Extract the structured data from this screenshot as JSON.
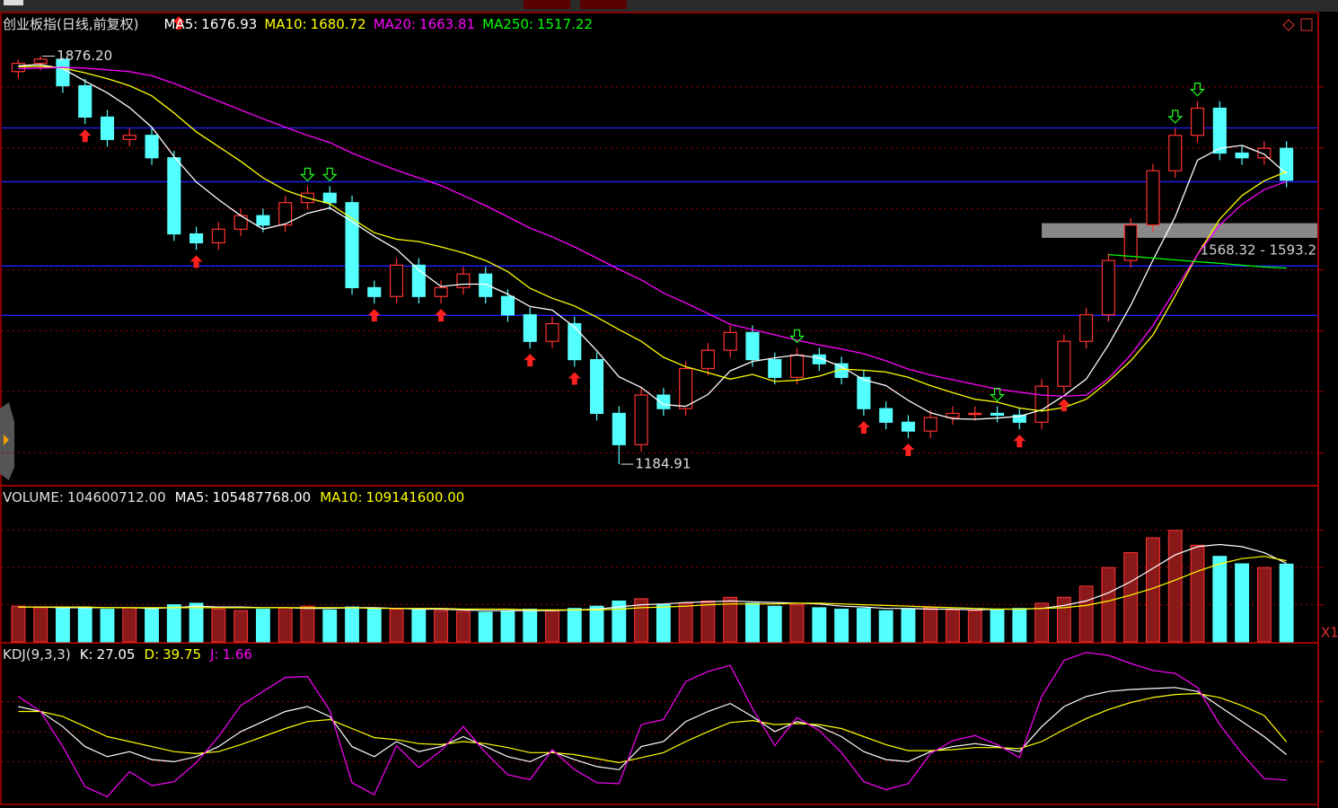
{
  "chart_data": [
    {
      "type": "candlestick",
      "title": "创业板指(日线,前复权)",
      "open": [
        1850,
        1864,
        1871,
        1826,
        1773,
        1735,
        1742,
        1704,
        1575,
        1560,
        1583,
        1606,
        1590,
        1628,
        1644,
        1628,
        1484,
        1469,
        1522,
        1469,
        1484,
        1507,
        1469,
        1438,
        1393,
        1423,
        1362,
        1271,
        1218,
        1302,
        1279,
        1347,
        1378,
        1408,
        1362,
        1332,
        1370,
        1355,
        1332,
        1279,
        1256,
        1241,
        1264,
        1271,
        1271,
        1268,
        1256,
        1317,
        1393,
        1438,
        1530,
        1590,
        1682,
        1742,
        1788,
        1712,
        1704,
        1720
      ],
      "high": [
        1870,
        1876.2,
        1874,
        1838,
        1785,
        1754,
        1754,
        1716,
        1587,
        1595,
        1618,
        1618,
        1640,
        1656,
        1656,
        1640,
        1496,
        1534,
        1534,
        1496,
        1519,
        1519,
        1481,
        1450,
        1435,
        1435,
        1374,
        1283,
        1314,
        1314,
        1359,
        1390,
        1420,
        1420,
        1374,
        1382,
        1382,
        1367,
        1344,
        1291,
        1268,
        1276,
        1283,
        1283,
        1283,
        1280,
        1329,
        1405,
        1450,
        1542,
        1602,
        1694,
        1754,
        1800,
        1800,
        1724,
        1732,
        1732
      ],
      "low": [
        1838,
        1852,
        1814,
        1761,
        1723,
        1723,
        1692,
        1563,
        1548,
        1548,
        1571,
        1578,
        1578,
        1616,
        1616,
        1472,
        1457,
        1457,
        1457,
        1457,
        1472,
        1457,
        1426,
        1381,
        1381,
        1350,
        1259,
        1184.91,
        1206,
        1267,
        1267,
        1335,
        1366,
        1350,
        1320,
        1320,
        1343,
        1320,
        1267,
        1244,
        1229,
        1229,
        1252,
        1259,
        1256,
        1244,
        1244,
        1305,
        1381,
        1426,
        1518,
        1578,
        1670,
        1730,
        1700,
        1692,
        1692,
        1654
      ],
      "close": [
        1864,
        1871,
        1826,
        1773,
        1735,
        1742,
        1704,
        1575,
        1560,
        1583,
        1606,
        1590,
        1628,
        1644,
        1628,
        1484,
        1469,
        1522,
        1469,
        1484,
        1507,
        1469,
        1438,
        1393,
        1423,
        1362,
        1271,
        1218,
        1302,
        1279,
        1347,
        1378,
        1408,
        1362,
        1332,
        1370,
        1355,
        1332,
        1279,
        1256,
        1241,
        1264,
        1271,
        1271,
        1268,
        1256,
        1317,
        1393,
        1438,
        1530,
        1590,
        1682,
        1742,
        1788,
        1712,
        1704,
        1720,
        1666
      ],
      "up_color": "#ff3232",
      "down_color": "#54ffff",
      "ylim": [
        1150,
        1950
      ],
      "grid_values": [
        1824,
        1721,
        1618,
        1514,
        1411,
        1308,
        1204
      ],
      "hlines": [
        1754.6,
        1663.4,
        1520.6,
        1437
      ],
      "hline_color": "#2020ff",
      "series": [
        {
          "name": "MA5:",
          "color": "#ffffff",
          "values": [
            1860,
            1862,
            1855,
            1834,
            1814,
            1789,
            1756,
            1706,
            1663,
            1633,
            1606,
            1583,
            1592,
            1610,
            1619,
            1596,
            1571,
            1549,
            1514,
            1486,
            1490,
            1490,
            1473,
            1452,
            1446,
            1417,
            1377,
            1333,
            1315,
            1286,
            1283,
            1303,
            1343,
            1359,
            1365,
            1370,
            1365,
            1350,
            1328,
            1318,
            1293,
            1272,
            1262,
            1261,
            1263,
            1266,
            1277,
            1301,
            1329,
            1387,
            1454,
            1531,
            1604,
            1700,
            1720,
            1725,
            1710,
            1676.93
          ]
        },
        {
          "name": "MA10:",
          "color": "#ffff00",
          "values": [
            1858,
            1859,
            1856,
            1848,
            1838,
            1826,
            1809,
            1780,
            1748,
            1723,
            1698,
            1670,
            1649,
            1636,
            1626,
            1601,
            1577,
            1566,
            1562,
            1553,
            1543,
            1530,
            1511,
            1483,
            1466,
            1453,
            1434,
            1413,
            1393,
            1366,
            1350,
            1340,
            1329,
            1337,
            1325,
            1327,
            1334,
            1346,
            1344,
            1341,
            1332,
            1318,
            1306,
            1295,
            1290,
            1280,
            1275,
            1281,
            1295,
            1325,
            1360,
            1404,
            1470,
            1540,
            1600,
            1640,
            1665,
            1680.72
          ]
        },
        {
          "name": "MA20:",
          "color": "#ff00ff",
          "values": [
            1855,
            1856,
            1857,
            1856,
            1853,
            1850,
            1843,
            1830,
            1815,
            1800,
            1785,
            1770,
            1756,
            1742,
            1730,
            1712,
            1697,
            1683,
            1670,
            1657,
            1640,
            1623,
            1604,
            1585,
            1570,
            1553,
            1534,
            1515,
            1497,
            1475,
            1458,
            1440,
            1422,
            1413,
            1404,
            1395,
            1387,
            1380,
            1372,
            1360,
            1346,
            1336,
            1328,
            1320,
            1312,
            1307,
            1302,
            1300,
            1302,
            1330,
            1370,
            1420,
            1480,
            1540,
            1590,
            1625,
            1650,
            1663.81
          ]
        },
        {
          "name": "MA250:",
          "color": "#00ff00",
          "values": [
            null,
            null,
            null,
            null,
            null,
            null,
            null,
            null,
            null,
            null,
            null,
            null,
            null,
            null,
            null,
            null,
            null,
            null,
            null,
            null,
            null,
            null,
            null,
            null,
            null,
            null,
            null,
            null,
            null,
            null,
            null,
            null,
            null,
            null,
            null,
            null,
            null,
            null,
            null,
            null,
            null,
            null,
            null,
            null,
            null,
            null,
            null,
            null,
            null,
            1540,
            1537,
            1534,
            1531,
            1528,
            1525,
            1522,
            1519,
            1517.22
          ]
        }
      ],
      "buy_signals": [
        3,
        8,
        16,
        19,
        23,
        25,
        38,
        40,
        45,
        47
      ],
      "sell_signals": [
        13,
        14,
        35,
        44,
        52,
        53
      ],
      "annotations": [
        {
          "value": 1876.2,
          "label": "1876.20"
        },
        {
          "value": 1184.91,
          "label": "1184.91"
        }
      ],
      "range_box": {
        "low": 1568.32,
        "high": 1593.2,
        "label": "1568.32 - 1593.2"
      }
    },
    {
      "type": "bar",
      "title": "VOLUME:",
      "values": [
        48000000,
        46000000,
        45000000,
        47000000,
        44000000,
        46000000,
        45000000,
        50000000,
        52000000,
        44000000,
        42000000,
        44000000,
        46000000,
        48000000,
        43000000,
        47000000,
        45000000,
        44000000,
        43000000,
        42000000,
        41000000,
        40000000,
        42000000,
        44000000,
        43000000,
        45000000,
        48000000,
        55000000,
        58000000,
        50000000,
        52000000,
        55000000,
        60000000,
        52000000,
        48000000,
        50000000,
        46000000,
        44000000,
        45000000,
        42000000,
        44000000,
        46000000,
        43000000,
        42000000,
        44000000,
        45000000,
        52000000,
        60000000,
        75000000,
        100000000,
        120000000,
        140000000,
        150000000,
        130000000,
        115000000,
        105000000,
        100000000,
        104600712
      ],
      "value_labels": [
        null,
        null,
        null,
        null,
        null,
        null,
        null,
        null,
        null,
        null,
        null,
        null,
        null,
        null,
        null,
        null,
        null,
        null,
        null,
        null,
        null,
        null,
        null,
        null,
        null,
        null,
        null,
        null,
        null,
        null,
        null,
        null,
        null,
        null,
        null,
        null,
        null,
        null,
        null,
        null,
        null,
        null,
        null,
        null,
        null,
        null,
        null,
        null,
        null,
        null,
        null,
        null,
        null,
        null,
        null,
        null,
        null,
        "104600712.00"
      ],
      "ylim": [
        0,
        210000000
      ],
      "grid_values": [
        50000000,
        100000000,
        150000000
      ],
      "axis_label": "X1",
      "series": [
        {
          "name": "MA5:",
          "color": "#ffffff",
          "values": [
            47000000,
            47000000,
            46000000,
            46000000,
            46000000,
            46000000,
            45000000,
            46000000,
            48000000,
            47000000,
            47000000,
            46000000,
            46000000,
            45000000,
            45000000,
            46000000,
            46000000,
            45000000,
            44000000,
            44000000,
            43000000,
            42000000,
            42000000,
            42000000,
            42000000,
            43000000,
            44000000,
            47000000,
            50000000,
            51000000,
            53000000,
            54000000,
            55000000,
            54000000,
            53000000,
            52000000,
            51000000,
            48000000,
            47000000,
            45000000,
            45000000,
            44000000,
            44000000,
            43000000,
            44000000,
            44000000,
            45000000,
            49000000,
            55000000,
            66000000,
            81000000,
            99000000,
            117000000,
            128000000,
            131000000,
            128000000,
            120000000,
            105487768
          ],
          "value_labels": [
            null,
            null,
            null,
            null,
            null,
            null,
            null,
            null,
            null,
            null,
            null,
            null,
            null,
            null,
            null,
            null,
            null,
            null,
            null,
            null,
            null,
            null,
            null,
            null,
            null,
            null,
            null,
            null,
            null,
            null,
            null,
            null,
            null,
            null,
            null,
            null,
            null,
            null,
            null,
            null,
            null,
            null,
            null,
            null,
            null,
            null,
            null,
            null,
            null,
            null,
            null,
            null,
            null,
            null,
            null,
            null,
            null,
            "105487768.00"
          ]
        },
        {
          "name": "MA10:",
          "color": "#ffff00",
          "values": [
            47000000,
            47000000,
            47000000,
            47000000,
            46000000,
            46000000,
            46000000,
            46000000,
            46000000,
            46000000,
            46000000,
            46000000,
            46000000,
            46000000,
            46000000,
            46000000,
            45000000,
            45000000,
            45000000,
            45000000,
            44000000,
            44000000,
            44000000,
            43000000,
            43000000,
            43000000,
            43000000,
            44000000,
            46000000,
            47000000,
            48000000,
            50000000,
            51000000,
            51000000,
            51000000,
            52000000,
            52000000,
            51000000,
            50000000,
            49000000,
            48000000,
            47000000,
            46000000,
            45000000,
            44000000,
            44000000,
            45000000,
            46000000,
            49000000,
            55000000,
            63000000,
            72000000,
            83000000,
            95000000,
            105000000,
            112000000,
            115000000,
            109141600
          ],
          "value_labels": [
            null,
            null,
            null,
            null,
            null,
            null,
            null,
            null,
            null,
            null,
            null,
            null,
            null,
            null,
            null,
            null,
            null,
            null,
            null,
            null,
            null,
            null,
            null,
            null,
            null,
            null,
            null,
            null,
            null,
            null,
            null,
            null,
            null,
            null,
            null,
            null,
            null,
            null,
            null,
            null,
            null,
            null,
            null,
            null,
            null,
            null,
            null,
            null,
            null,
            null,
            null,
            null,
            null,
            null,
            null,
            null,
            null,
            "109141600.00"
          ]
        }
      ]
    },
    {
      "type": "line",
      "title": "KDJ(9,3,3)",
      "ylim": [
        -20,
        135
      ],
      "grid_values": [
        20,
        50,
        80
      ],
      "series": [
        {
          "name": "K:",
          "color": "#ffffff",
          "values": [
            75,
            70,
            55,
            35,
            25,
            30,
            22,
            20,
            25,
            35,
            50,
            60,
            70,
            75,
            65,
            35,
            25,
            40,
            30,
            35,
            45,
            35,
            25,
            20,
            30,
            22,
            15,
            12,
            35,
            40,
            60,
            70,
            78,
            65,
            50,
            60,
            55,
            45,
            30,
            22,
            20,
            30,
            35,
            38,
            35,
            30,
            55,
            75,
            85,
            90,
            92,
            93,
            94,
            90,
            75,
            60,
            45,
            27.05
          ]
        },
        {
          "name": "D:",
          "color": "#ffff00",
          "values": [
            70,
            70,
            65,
            55,
            45,
            40,
            35,
            30,
            28,
            30,
            37,
            45,
            53,
            60,
            62,
            53,
            44,
            42,
            38,
            37,
            40,
            38,
            34,
            29,
            29,
            27,
            23,
            19,
            24,
            29,
            40,
            50,
            59,
            61,
            57,
            58,
            57,
            53,
            45,
            37,
            31,
            31,
            32,
            34,
            34,
            33,
            40,
            52,
            63,
            72,
            79,
            84,
            87,
            88,
            84,
            76,
            66,
            39.75
          ]
        },
        {
          "name": "J:",
          "color": "#ff00ff",
          "values": [
            85,
            70,
            35,
            -5,
            -15,
            10,
            -4,
            0,
            19,
            45,
            76,
            90,
            104,
            105,
            71,
            -1,
            -13,
            36,
            14,
            31,
            55,
            29,
            7,
            2,
            32,
            12,
            -1,
            -2,
            57,
            62,
            100,
            110,
            116,
            73,
            36,
            64,
            51,
            29,
            0,
            -8,
            -2,
            28,
            41,
            46,
            37,
            24,
            85,
            121,
            129,
            126,
            118,
            111,
            108,
            94,
            57,
            28,
            3,
            1.66
          ]
        }
      ]
    }
  ]
}
